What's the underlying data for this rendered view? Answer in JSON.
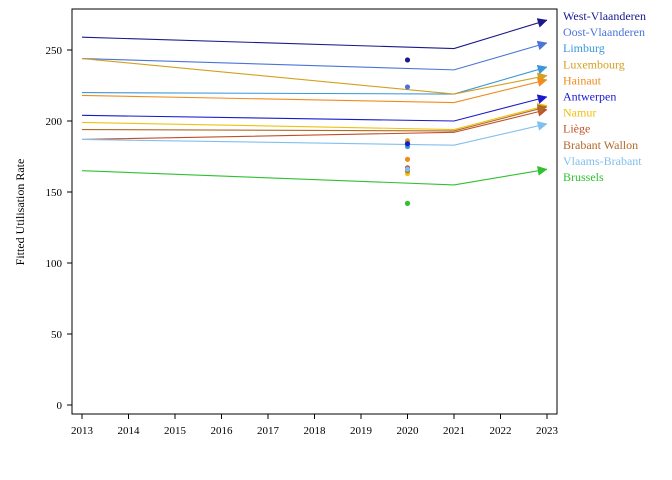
{
  "chart_data": {
    "type": "line",
    "ylabel": "Fitted Utilisation Rate",
    "xlabel": "",
    "xlim": [
      2013,
      2023
    ],
    "ylim": [
      -5,
      290
    ],
    "x_ticks": [
      2013,
      2014,
      2015,
      2016,
      2017,
      2018,
      2019,
      2020,
      2021,
      2022,
      2023
    ],
    "y_ticks": [
      0,
      50,
      100,
      150,
      200,
      250
    ],
    "grid": false,
    "legend_placement": "right",
    "series": [
      {
        "name": "West-Vlaanderen",
        "color": "#1a1a8c",
        "x": [
          2013,
          2021,
          2023
        ],
        "values": [
          259,
          251,
          271
        ],
        "point_2020": 243
      },
      {
        "name": "Oost-Vlaanderen",
        "color": "#4a74d9",
        "x": [
          2013,
          2021,
          2023
        ],
        "values": [
          244,
          236,
          255
        ],
        "point_2020": 224
      },
      {
        "name": "Limburg",
        "color": "#3a98d8",
        "x": [
          2013,
          2021,
          2023
        ],
        "values": [
          220,
          219,
          238
        ],
        "point_2020": 182
      },
      {
        "name": "Luxembourg",
        "color": "#d4a020",
        "x": [
          2013,
          2021,
          2023
        ],
        "values": [
          244,
          219,
          232
        ],
        "point_2020": 186
      },
      {
        "name": "Hainaut",
        "color": "#f08c1e",
        "x": [
          2013,
          2021,
          2023
        ],
        "values": [
          218,
          213,
          229
        ],
        "point_2020": 173
      },
      {
        "name": "Antwerpen",
        "color": "#1a1acc",
        "x": [
          2013,
          2021,
          2023
        ],
        "values": [
          204,
          200,
          217
        ],
        "point_2020": 184
      },
      {
        "name": "Namur",
        "color": "#f0c010",
        "x": [
          2013,
          2021,
          2023
        ],
        "values": [
          199,
          194,
          211
        ],
        "point_2020": 163
      },
      {
        "name": "Liège",
        "color": "#c0502a",
        "x": [
          2013,
          2021,
          2023
        ],
        "values": [
          187,
          192,
          208
        ],
        "point_2020": 167
      },
      {
        "name": "Brabant Wallon",
        "color": "#b06a28",
        "x": [
          2013,
          2021,
          2023
        ],
        "values": [
          194,
          193,
          210
        ],
        "point_2020": 165
      },
      {
        "name": "Vlaams-Brabant",
        "color": "#80c0f0",
        "x": [
          2013,
          2021,
          2023
        ],
        "values": [
          187,
          183,
          198
        ],
        "point_2020": 166
      },
      {
        "name": "Brussels",
        "color": "#30c030",
        "x": [
          2013,
          2021,
          2023
        ],
        "values": [
          165,
          155,
          166
        ],
        "point_2020": 142
      }
    ]
  }
}
